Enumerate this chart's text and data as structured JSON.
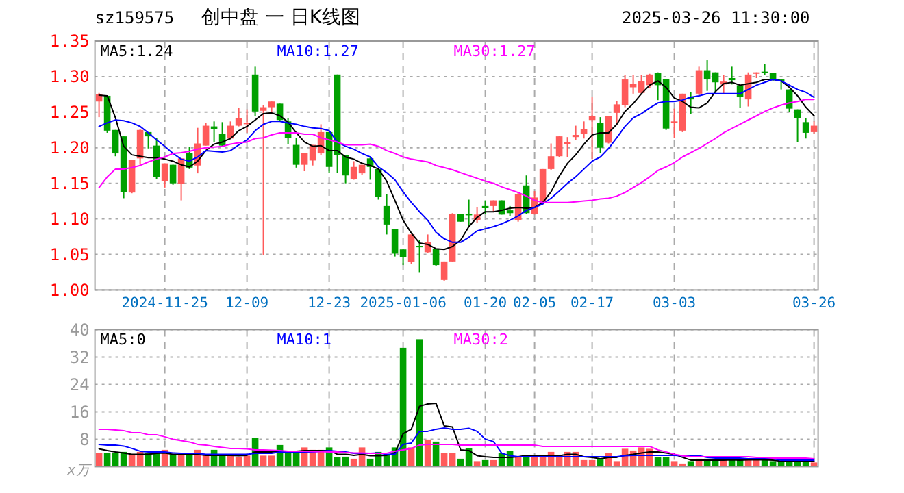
{
  "chart_data": [
    {
      "type": "candlestick",
      "title": "创中盘 一 日K线图",
      "subtitle": "sz159575",
      "annotations": [
        "2025-03-26 11:30:00"
      ],
      "categories": [
        null,
        null,
        null,
        null,
        null,
        null,
        null,
        null,
        "2024-11-25",
        null,
        null,
        null,
        null,
        null,
        null,
        null,
        null,
        null,
        "12-09",
        null,
        null,
        null,
        null,
        null,
        null,
        null,
        null,
        null,
        "12-23",
        null,
        null,
        null,
        null,
        null,
        null,
        null,
        null,
        "2025-01-06",
        null,
        null,
        null,
        null,
        null,
        null,
        null,
        null,
        null,
        "01-20",
        null,
        null,
        null,
        null,
        null,
        "02-05",
        null,
        null,
        null,
        null,
        null,
        null,
        "02-17",
        null,
        null,
        null,
        null,
        null,
        null,
        null,
        null,
        null,
        "03-03",
        null,
        null,
        null,
        null,
        null,
        null,
        null,
        null,
        null,
        null,
        null,
        null,
        null,
        null,
        null,
        null,
        "03-26"
      ],
      "ohlc": [
        [
          1.265,
          1.277,
          1.243,
          1.275
        ],
        [
          1.273,
          1.273,
          1.221,
          1.224
        ],
        [
          1.225,
          1.225,
          1.188,
          1.192
        ],
        [
          1.216,
          1.216,
          1.129,
          1.138
        ],
        [
          1.137,
          1.183,
          1.136,
          1.183
        ],
        [
          1.185,
          1.226,
          1.176,
          1.225
        ],
        [
          1.222,
          1.222,
          1.199,
          1.216
        ],
        [
          1.203,
          1.214,
          1.156,
          1.159
        ],
        [
          1.153,
          1.178,
          1.144,
          1.178
        ],
        [
          1.176,
          1.176,
          1.148,
          1.15
        ],
        [
          1.149,
          1.185,
          1.126,
          1.185
        ],
        [
          1.193,
          1.201,
          1.17,
          1.172
        ],
        [
          1.175,
          1.228,
          1.164,
          1.206
        ],
        [
          1.203,
          1.235,
          1.203,
          1.231
        ],
        [
          1.23,
          1.237,
          1.208,
          1.226
        ],
        [
          1.219,
          1.236,
          1.202,
          1.203
        ],
        [
          1.213,
          1.237,
          1.212,
          1.231
        ],
        [
          1.231,
          1.256,
          1.23,
          1.242
        ],
        [
          1.234,
          1.254,
          1.221,
          1.235
        ],
        [
          1.303,
          1.314,
          1.244,
          1.251
        ],
        [
          1.252,
          1.26,
          1.049,
          1.257
        ],
        [
          1.257,
          1.265,
          1.248,
          1.265
        ],
        [
          1.262,
          1.262,
          1.237,
          1.239
        ],
        [
          1.237,
          1.242,
          1.205,
          1.214
        ],
        [
          1.204,
          1.214,
          1.172,
          1.176
        ],
        [
          1.176,
          1.193,
          1.167,
          1.193
        ],
        [
          1.182,
          1.204,
          1.175,
          1.204
        ],
        [
          1.192,
          1.233,
          1.19,
          1.222
        ],
        [
          1.222,
          1.222,
          1.165,
          1.173
        ],
        [
          1.303,
          1.303,
          1.165,
          1.19
        ],
        [
          1.19,
          1.19,
          1.15,
          1.161
        ],
        [
          1.156,
          1.181,
          1.155,
          1.173
        ],
        [
          1.164,
          1.176,
          1.162,
          1.176
        ],
        [
          1.185,
          1.187,
          1.155,
          1.173
        ],
        [
          1.17,
          1.17,
          1.127,
          1.131
        ],
        [
          1.118,
          1.135,
          1.078,
          1.092
        ],
        [
          1.086,
          1.086,
          1.047,
          1.051
        ],
        [
          1.057,
          1.058,
          1.035,
          1.046
        ],
        [
          1.039,
          1.078,
          1.037,
          1.078
        ],
        [
          1.062,
          1.07,
          1.025,
          1.06
        ],
        [
          1.053,
          1.078,
          1.052,
          1.067
        ],
        [
          1.058,
          1.058,
          1.034,
          1.035
        ],
        [
          1.014,
          1.04,
          1.012,
          1.04
        ],
        [
          1.04,
          1.108,
          1.04,
          1.107
        ],
        [
          1.107,
          1.107,
          1.096,
          1.096
        ],
        [
          1.107,
          1.127,
          1.089,
          1.105
        ],
        [
          1.098,
          1.116,
          1.094,
          1.106
        ],
        [
          1.118,
          1.126,
          1.107,
          1.115
        ],
        [
          1.118,
          1.126,
          1.11,
          1.126
        ],
        [
          1.126,
          1.126,
          1.106,
          1.106
        ],
        [
          1.112,
          1.118,
          1.104,
          1.108
        ],
        [
          1.098,
          1.138,
          1.096,
          1.135
        ],
        [
          1.147,
          1.161,
          1.107,
          1.108
        ],
        [
          1.107,
          1.139,
          1.106,
          1.13
        ],
        [
          1.123,
          1.17,
          1.12,
          1.17
        ],
        [
          1.17,
          1.206,
          1.168,
          1.188
        ],
        [
          1.188,
          1.216,
          1.187,
          1.216
        ],
        [
          1.205,
          1.215,
          1.187,
          1.208
        ],
        [
          1.215,
          1.231,
          1.211,
          1.218
        ],
        [
          1.219,
          1.237,
          1.213,
          1.226
        ],
        [
          1.239,
          1.271,
          1.184,
          1.245
        ],
        [
          1.235,
          1.243,
          1.193,
          1.2
        ],
        [
          1.207,
          1.245,
          1.206,
          1.245
        ],
        [
          1.249,
          1.266,
          1.232,
          1.261
        ],
        [
          1.26,
          1.302,
          1.257,
          1.296
        ],
        [
          1.285,
          1.302,
          1.276,
          1.29
        ],
        [
          1.277,
          1.302,
          1.276,
          1.294
        ],
        [
          1.288,
          1.304,
          1.284,
          1.303
        ],
        [
          1.305,
          1.306,
          1.267,
          1.288
        ],
        [
          1.297,
          1.297,
          1.225,
          1.227
        ],
        [
          1.236,
          1.255,
          1.214,
          1.237
        ],
        [
          1.224,
          1.276,
          1.222,
          1.276
        ],
        [
          1.272,
          1.278,
          1.247,
          1.268
        ],
        [
          1.276,
          1.314,
          1.273,
          1.309
        ],
        [
          1.309,
          1.323,
          1.28,
          1.296
        ],
        [
          1.306,
          1.306,
          1.277,
          1.292
        ],
        [
          1.289,
          1.302,
          1.276,
          1.293
        ],
        [
          1.298,
          1.314,
          1.289,
          1.295
        ],
        [
          1.288,
          1.288,
          1.256,
          1.271
        ],
        [
          1.268,
          1.306,
          1.258,
          1.303
        ],
        [
          1.304,
          1.306,
          1.298,
          1.306
        ],
        [
          1.307,
          1.318,
          1.302,
          1.305
        ],
        [
          1.305,
          1.305,
          1.294,
          1.296
        ],
        [
          1.296,
          1.296,
          1.282,
          1.294
        ],
        [
          1.282,
          1.282,
          1.25,
          1.255
        ],
        [
          1.254,
          1.254,
          1.208,
          1.242
        ],
        [
          1.236,
          1.242,
          1.213,
          1.221
        ],
        [
          1.222,
          1.237,
          1.22,
          1.231
        ]
      ],
      "series": [
        {
          "type": "line",
          "name": "MA5:1.24",
          "color": "#000000",
          "values": [
            1.274,
            1.273,
            1.242,
            1.202,
            1.19,
            1.188,
            1.186,
            1.186,
            1.184,
            1.181,
            1.176,
            1.173,
            1.181,
            1.196,
            1.205,
            1.208,
            1.213,
            1.224,
            1.23,
            1.239,
            1.248,
            1.249,
            1.245,
            1.236,
            1.221,
            1.208,
            1.202,
            1.203,
            1.196,
            1.196,
            1.187,
            1.184,
            1.178,
            1.175,
            1.17,
            1.153,
            1.126,
            1.098,
            1.08,
            1.066,
            1.064,
            1.058,
            1.057,
            1.061,
            1.07,
            1.089,
            1.102,
            1.11,
            1.11,
            1.112,
            1.115,
            1.116,
            1.115,
            1.116,
            1.123,
            1.138,
            1.16,
            1.178,
            1.19,
            1.205,
            1.218,
            1.221,
            1.221,
            1.233,
            1.251,
            1.262,
            1.276,
            1.288,
            1.294,
            1.285,
            1.27,
            1.265,
            1.257,
            1.256,
            1.263,
            1.279,
            1.29,
            1.292,
            1.288,
            1.29,
            1.292,
            1.296,
            1.296,
            1.294,
            1.285,
            1.273,
            1.257,
            1.245
          ]
        },
        {
          "type": "line",
          "name": "MA10:1.27",
          "color": "#0000ff",
          "values": [
            1.23,
            1.235,
            1.239,
            1.238,
            1.235,
            1.23,
            1.221,
            1.211,
            1.202,
            1.192,
            1.184,
            1.181,
            1.187,
            1.196,
            1.195,
            1.194,
            1.196,
            1.204,
            1.211,
            1.224,
            1.233,
            1.237,
            1.237,
            1.235,
            1.233,
            1.23,
            1.228,
            1.227,
            1.224,
            1.208,
            1.202,
            1.198,
            1.192,
            1.187,
            1.173,
            1.165,
            1.155,
            1.138,
            1.123,
            1.11,
            1.098,
            1.081,
            1.072,
            1.067,
            1.067,
            1.074,
            1.083,
            1.086,
            1.089,
            1.093,
            1.098,
            1.104,
            1.112,
            1.116,
            1.121,
            1.129,
            1.139,
            1.15,
            1.159,
            1.17,
            1.181,
            1.187,
            1.199,
            1.214,
            1.23,
            1.242,
            1.248,
            1.256,
            1.263,
            1.265,
            1.265,
            1.267,
            1.271,
            1.273,
            1.276,
            1.276,
            1.276,
            1.276,
            1.276,
            1.282,
            1.288,
            1.292,
            1.296,
            1.294,
            1.288,
            1.282,
            1.278,
            1.271
          ]
        },
        {
          "type": "line",
          "name": "MA30:1.27",
          "color": "#ff00ff",
          "values": [
            1.144,
            1.159,
            1.17,
            1.17,
            1.172,
            1.175,
            1.18,
            1.184,
            1.187,
            1.192,
            1.193,
            1.195,
            1.198,
            1.2,
            1.201,
            1.202,
            1.205,
            1.207,
            1.208,
            1.213,
            1.214,
            1.218,
            1.221,
            1.221,
            1.221,
            1.219,
            1.219,
            1.214,
            1.211,
            1.208,
            1.204,
            1.204,
            1.204,
            1.205,
            1.202,
            1.196,
            1.192,
            1.187,
            1.184,
            1.182,
            1.18,
            1.175,
            1.172,
            1.169,
            1.165,
            1.161,
            1.157,
            1.153,
            1.15,
            1.145,
            1.141,
            1.137,
            1.132,
            1.126,
            1.123,
            1.123,
            1.123,
            1.123,
            1.124,
            1.125,
            1.126,
            1.128,
            1.129,
            1.132,
            1.137,
            1.144,
            1.151,
            1.159,
            1.168,
            1.173,
            1.179,
            1.187,
            1.193,
            1.199,
            1.206,
            1.213,
            1.221,
            1.227,
            1.233,
            1.239,
            1.245,
            1.251,
            1.256,
            1.26,
            1.263,
            1.265,
            1.268,
            1.268
          ]
        }
      ],
      "ylim": [
        1.0,
        1.35
      ],
      "yticks": [
        {
          "value": 1.0,
          "label": "1.00"
        },
        1.05,
        {
          "value": 1.1,
          "label": "1.10"
        },
        1.15,
        {
          "value": 1.2,
          "label": "1.20"
        },
        1.25,
        {
          "value": 1.3,
          "label": "1.30"
        },
        1.35
      ],
      "grid": true,
      "legend": "top"
    },
    {
      "type": "bar",
      "ylabel": "x万",
      "tick_labels": "y",
      "categories": [
        null,
        null,
        null,
        null,
        null,
        null,
        null,
        null,
        null,
        null,
        null,
        null,
        null,
        null,
        null,
        null,
        null,
        null,
        null,
        null,
        null,
        null,
        null,
        null,
        null,
        null,
        null,
        null,
        null,
        null,
        null,
        null,
        null,
        null,
        null,
        null,
        null,
        null,
        null,
        null,
        null,
        null,
        null,
        null,
        null,
        null,
        null,
        null,
        null,
        null,
        null,
        null,
        null,
        null,
        null,
        null,
        null,
        null,
        null,
        null,
        null,
        null,
        null,
        null,
        null,
        null,
        null,
        null,
        null,
        null,
        null,
        null,
        null,
        null,
        null,
        null,
        null,
        null,
        null,
        null,
        null,
        null,
        null,
        null,
        null,
        null,
        null,
        null
      ],
      "series": [
        {
          "type": "bar",
          "values": [
            3.9,
            3.9,
            3.9,
            4.3,
            3.6,
            4.3,
            3.9,
            3.9,
            4.9,
            3.6,
            3.6,
            3.6,
            4.9,
            3.3,
            4.9,
            3.2,
            3.6,
            2.9,
            3.2,
            8.3,
            3.2,
            3.2,
            6.3,
            4.3,
            4.3,
            5.6,
            4.9,
            4.9,
            5.6,
            2.7,
            2.9,
            2.3,
            5.6,
            2.3,
            4.3,
            3.6,
            5.6,
            34.7,
            5.6,
            37.2,
            7.9,
            7.3,
            3.9,
            3.9,
            2.3,
            5.3,
            1.6,
            1.9,
            1.9,
            3.9,
            4.5,
            2.9,
            2.7,
            3.3,
            3.3,
            4.3,
            3.3,
            4.3,
            4.3,
            1.9,
            1.9,
            2.3,
            3.9,
            1.6,
            5.2,
            4.7,
            5.6,
            5.2,
            2.7,
            2.7,
            1.6,
            0.9,
            1.6,
            2.3,
            2.3,
            1.9,
            1.9,
            2.7,
            1.9,
            1.9,
            1.9,
            1.9,
            1.6,
            1.6,
            1.6,
            1.6,
            1.6,
            1.2
          ],
          "colors": [
            "#ff5a5a",
            "#00a000",
            "#00a000",
            "#00a000",
            "#ff5a5a",
            "#ff5a5a",
            "#00a000",
            "#00a000",
            "#ff5a5a",
            "#00a000",
            "#ff5a5a",
            "#00a000",
            "#ff5a5a",
            "#ff5a5a",
            "#00a000",
            "#00a000",
            "#ff5a5a",
            "#ff5a5a",
            "#ff5a5a",
            "#00a000",
            "#ff5a5a",
            "#ff5a5a",
            "#00a000",
            "#00a000",
            "#00a000",
            "#ff5a5a",
            "#ff5a5a",
            "#ff5a5a",
            "#00a000",
            "#00a000",
            "#00a000",
            "#ff5a5a",
            "#ff5a5a",
            "#00a000",
            "#00a000",
            "#00a000",
            "#00a000",
            "#00a000",
            "#ff5a5a",
            "#00a000",
            "#ff5a5a",
            "#00a000",
            "#ff5a5a",
            "#ff5a5a",
            "#00a000",
            "#00a000",
            "#ff5a5a",
            "#00a000",
            "#ff5a5a",
            "#00a000",
            "#00a000",
            "#ff5a5a",
            "#00a000",
            "#ff5a5a",
            "#ff5a5a",
            "#ff5a5a",
            "#ff5a5a",
            "#ff5a5a",
            "#ff5a5a",
            "#ff5a5a",
            "#ff5a5a",
            "#00a000",
            "#ff5a5a",
            "#ff5a5a",
            "#ff5a5a",
            "#ff5a5a",
            "#ff5a5a",
            "#ff5a5a",
            "#00a000",
            "#00a000",
            "#ff5a5a",
            "#ff5a5a",
            "#00a000",
            "#ff5a5a",
            "#00a000",
            "#00a000",
            "#ff5a5a",
            "#00a000",
            "#00a000",
            "#ff5a5a",
            "#ff5a5a",
            "#00a000",
            "#00a000",
            "#00a000",
            "#00a000",
            "#00a000",
            "#00a000",
            "#ff5a5a"
          ]
        },
        {
          "type": "line",
          "name": "MA5:0",
          "color": "#000000",
          "values": [
            5.2,
            4.7,
            4.3,
            4.0,
            3.6,
            3.6,
            3.6,
            3.9,
            4.0,
            3.6,
            3.6,
            3.6,
            3.6,
            3.3,
            3.3,
            3.3,
            3.3,
            3.2,
            3.3,
            4.3,
            4.3,
            4.3,
            4.5,
            4.5,
            4.5,
            4.7,
            4.7,
            4.7,
            4.7,
            3.6,
            3.6,
            3.3,
            3.6,
            3.2,
            3.2,
            3.3,
            3.9,
            9.6,
            10.9,
            17.6,
            18.3,
            18.5,
            11.9,
            11.6,
            4.9,
            4.7,
            3.2,
            2.9,
            2.7,
            2.7,
            2.7,
            2.9,
            3.3,
            3.3,
            3.3,
            3.3,
            3.2,
            3.6,
            3.6,
            2.9,
            2.7,
            2.3,
            2.7,
            2.7,
            3.3,
            3.6,
            4.0,
            4.3,
            4.3,
            4.0,
            3.6,
            2.7,
            1.9,
            1.9,
            1.9,
            1.9,
            1.9,
            2.0,
            1.9,
            2.0,
            2.0,
            2.0,
            1.9,
            1.6,
            1.6,
            1.6,
            1.6,
            1.6
          ]
        },
        {
          "type": "line",
          "name": "MA10:1",
          "color": "#0000ff",
          "values": [
            6.5,
            6.3,
            6.3,
            6.0,
            5.3,
            4.5,
            4.3,
            4.3,
            4.3,
            4.0,
            3.9,
            3.9,
            3.9,
            3.6,
            3.6,
            3.6,
            3.6,
            3.6,
            3.6,
            3.9,
            3.9,
            3.9,
            4.3,
            4.3,
            4.3,
            4.3,
            4.3,
            4.5,
            4.7,
            4.5,
            4.3,
            3.9,
            3.9,
            3.9,
            4.0,
            3.6,
            3.6,
            6.5,
            6.9,
            10.3,
            10.3,
            10.9,
            11.3,
            10.9,
            10.9,
            11.2,
            10.3,
            8.0,
            7.3,
            3.9,
            3.2,
            2.9,
            2.9,
            2.9,
            2.9,
            2.9,
            2.9,
            2.9,
            2.9,
            2.9,
            2.9,
            2.9,
            2.9,
            2.9,
            3.2,
            3.3,
            3.3,
            3.3,
            3.3,
            3.3,
            3.3,
            3.2,
            3.2,
            3.2,
            2.7,
            2.5,
            2.5,
            2.5,
            2.5,
            2.3,
            2.3,
            2.3,
            2.3,
            1.9,
            1.9,
            1.9,
            1.9,
            1.9
          ]
        },
        {
          "type": "line",
          "name": "MA30:2",
          "color": "#ff00ff",
          "values": [
            10.9,
            10.9,
            10.7,
            10.5,
            9.9,
            9.9,
            9.3,
            9.3,
            8.7,
            8.0,
            7.6,
            7.2,
            6.5,
            6.3,
            5.9,
            5.6,
            5.3,
            5.3,
            5.2,
            4.9,
            4.9,
            4.8,
            4.7,
            4.5,
            4.5,
            4.5,
            4.4,
            4.4,
            4.3,
            4.3,
            4.1,
            4.0,
            4.0,
            3.9,
            3.9,
            3.9,
            4.5,
            4.9,
            5.3,
            6.3,
            6.5,
            6.5,
            6.5,
            6.5,
            6.3,
            6.3,
            6.3,
            6.3,
            6.3,
            6.3,
            6.3,
            6.3,
            6.3,
            6.3,
            5.9,
            5.9,
            5.9,
            5.9,
            5.9,
            5.9,
            5.9,
            5.9,
            5.9,
            5.9,
            5.9,
            5.9,
            5.9,
            5.9,
            4.9,
            4.3,
            3.6,
            3.2,
            2.9,
            2.9,
            2.9,
            2.9,
            2.9,
            2.9,
            2.9,
            2.9,
            2.7,
            2.7,
            2.5,
            2.5,
            2.5,
            2.5,
            2.5,
            2.3
          ]
        }
      ],
      "ylim": [
        0,
        40
      ],
      "yticks": [
        8,
        16,
        24,
        32,
        40
      ],
      "grid": true,
      "legend": "top"
    }
  ]
}
